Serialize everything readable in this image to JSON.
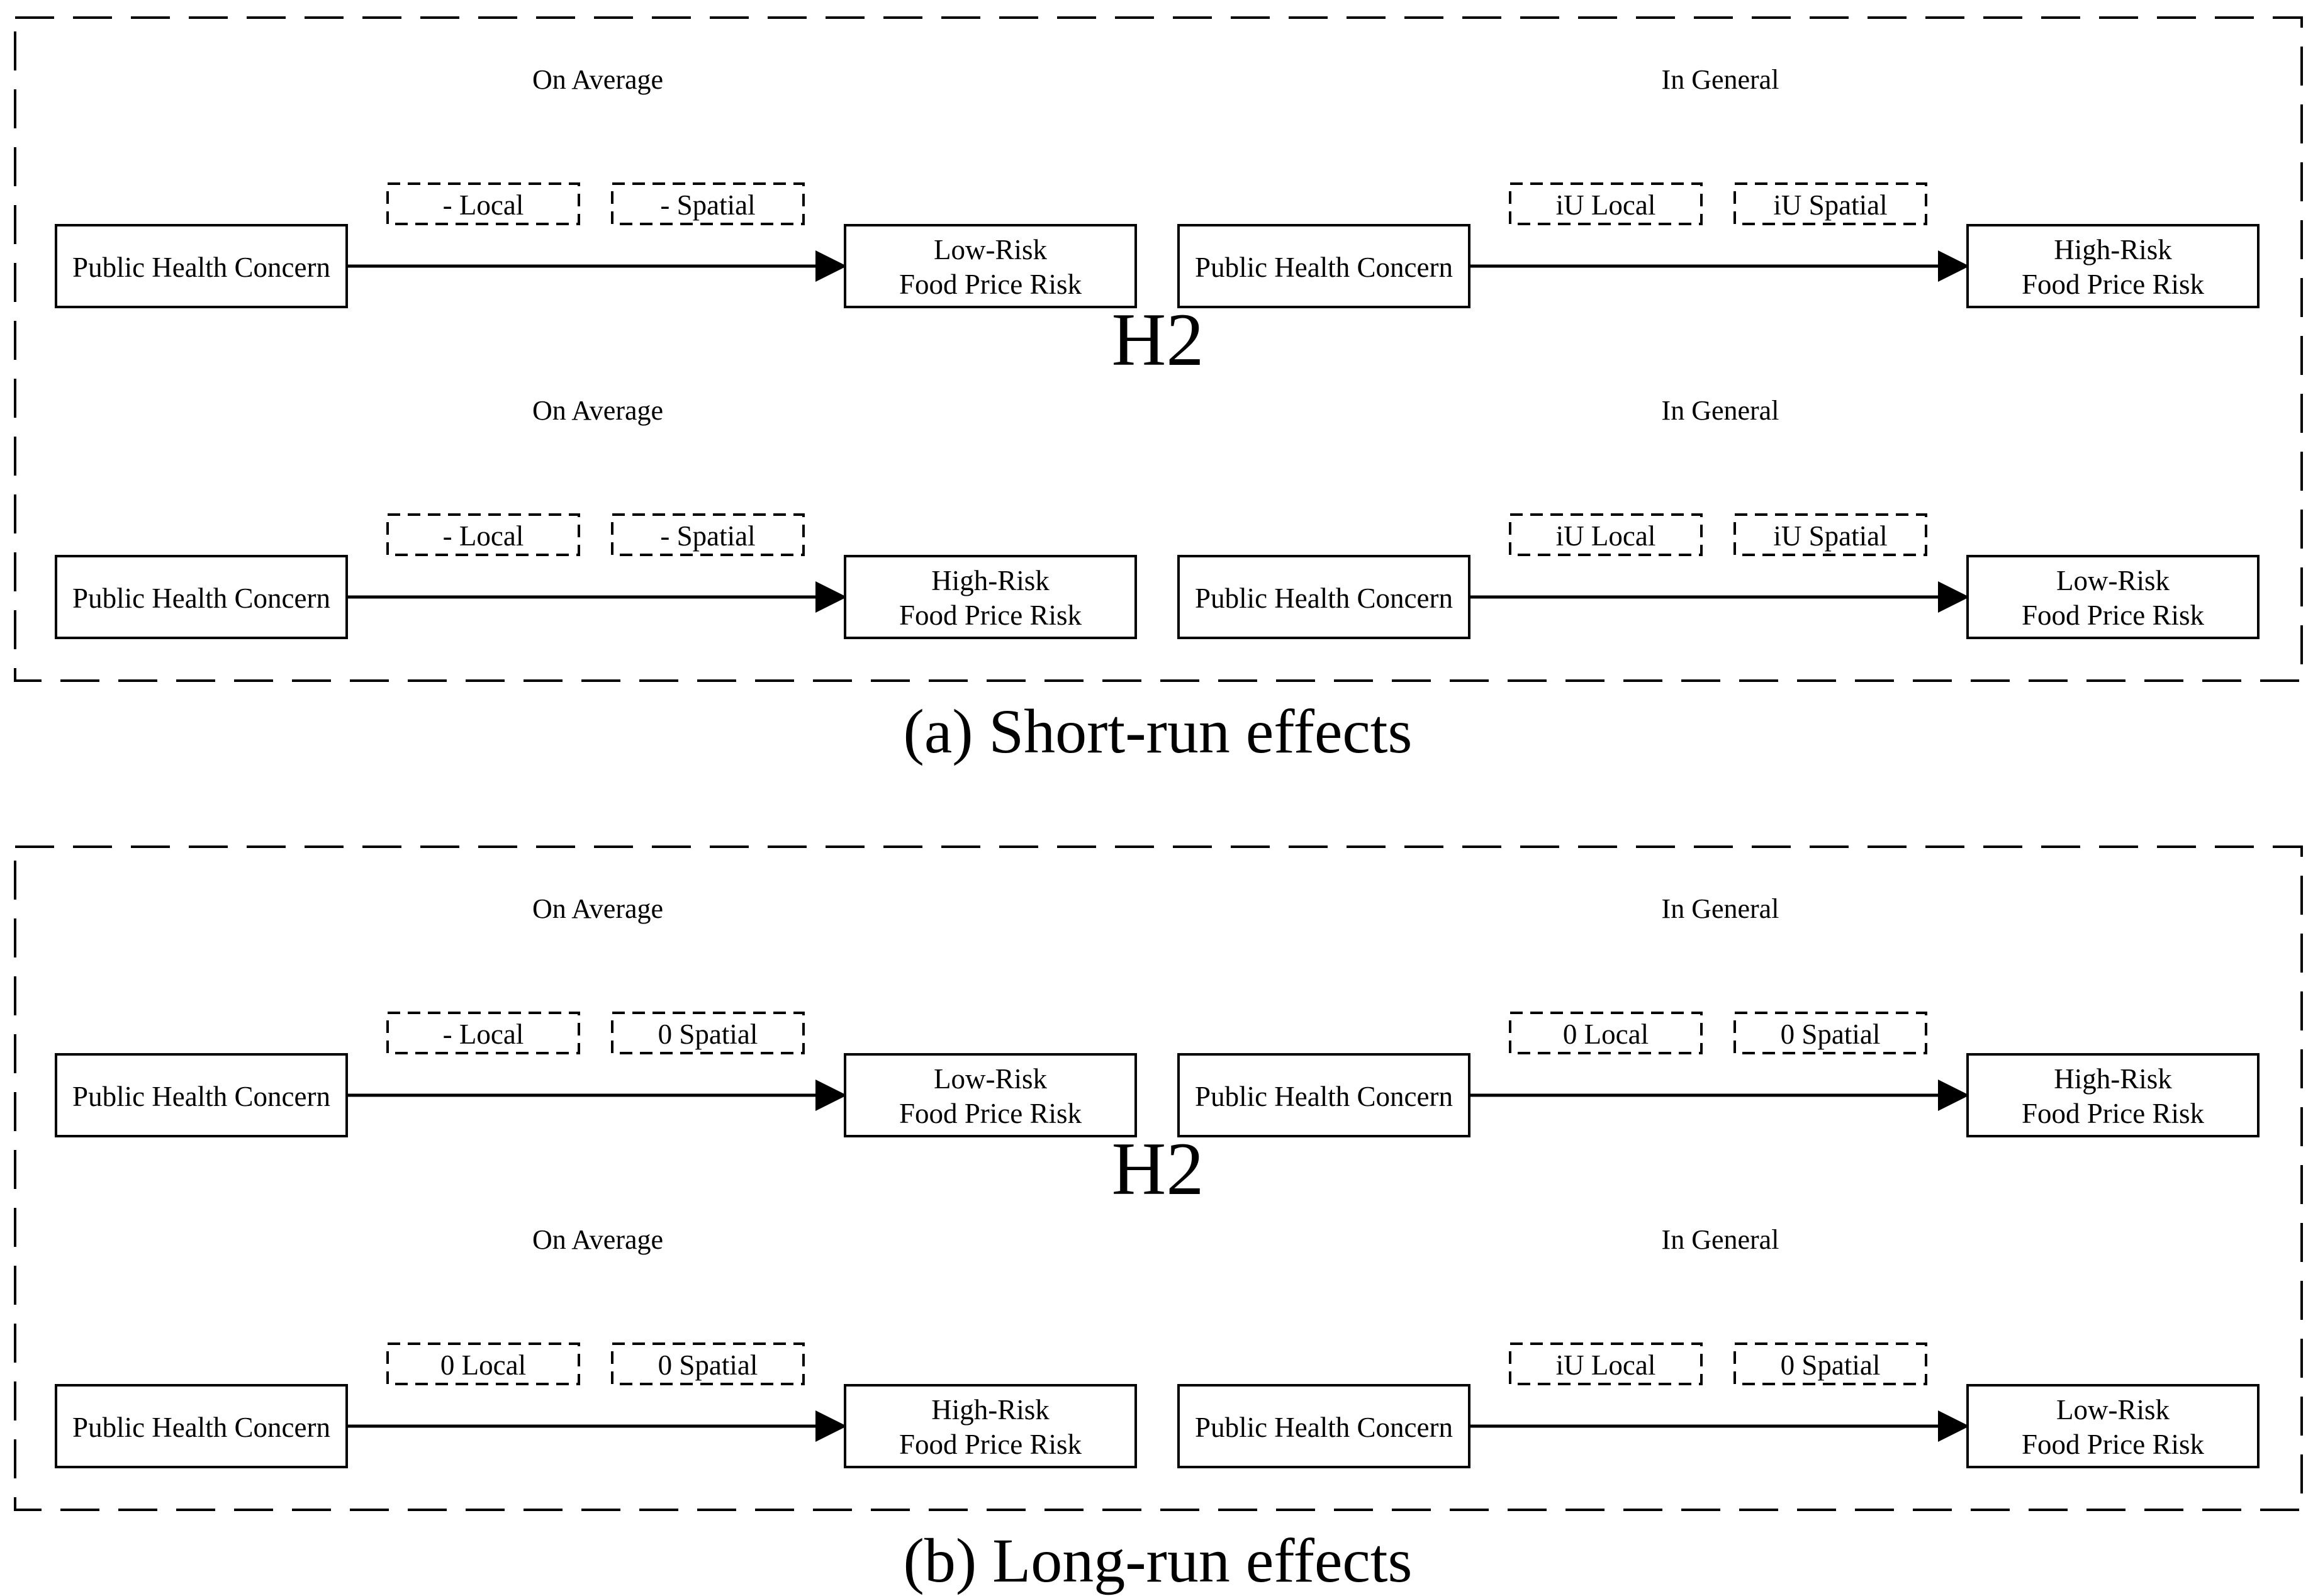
{
  "colors": {
    "low_risk": "#00A540",
    "high_risk": "#FF0000",
    "stroke": "#000000"
  },
  "panels": [
    {
      "caption": "(a) Short-run effects",
      "hypothesis": "H2",
      "rows": [
        {
          "left": {
            "heading": "On Average",
            "source": "Public Health Concern",
            "effects": [
              "- Local",
              "- Spatial"
            ],
            "target": {
              "risk": "Low-Risk",
              "risk_level": "low",
              "label": "Food Price Risk"
            }
          },
          "right": {
            "heading": "In General",
            "source": "Public Health Concern",
            "effects": [
              "iU Local",
              "iU Spatial"
            ],
            "target": {
              "risk": "High-Risk",
              "risk_level": "high",
              "label": "Food Price Risk"
            }
          }
        },
        {
          "left": {
            "heading": "On Average",
            "source": "Public Health Concern",
            "effects": [
              "- Local",
              "- Spatial"
            ],
            "target": {
              "risk": "High-Risk",
              "risk_level": "high",
              "label": "Food Price Risk"
            }
          },
          "right": {
            "heading": "In General",
            "source": "Public Health Concern",
            "effects": [
              "iU Local",
              "iU Spatial"
            ],
            "target": {
              "risk": "Low-Risk",
              "risk_level": "low",
              "label": "Food Price Risk"
            }
          }
        }
      ]
    },
    {
      "caption": "(b) Long-run effects",
      "hypothesis": "H2",
      "rows": [
        {
          "left": {
            "heading": "On Average",
            "source": "Public Health Concern",
            "effects": [
              "- Local",
              "0 Spatial"
            ],
            "target": {
              "risk": "Low-Risk",
              "risk_level": "low",
              "label": "Food Price Risk"
            }
          },
          "right": {
            "heading": "In General",
            "source": "Public Health Concern",
            "effects": [
              "0 Local",
              "0 Spatial"
            ],
            "target": {
              "risk": "High-Risk",
              "risk_level": "high",
              "label": "Food Price Risk"
            }
          }
        },
        {
          "left": {
            "heading": "On Average",
            "source": "Public Health Concern",
            "effects": [
              "0 Local",
              "0 Spatial"
            ],
            "target": {
              "risk": "High-Risk",
              "risk_level": "high",
              "label": "Food Price Risk"
            }
          },
          "right": {
            "heading": "In General",
            "source": "Public Health Concern",
            "effects": [
              "iU Local",
              "0 Spatial"
            ],
            "target": {
              "risk": "Low-Risk",
              "risk_level": "low",
              "label": "Food Price Risk"
            }
          }
        }
      ]
    }
  ]
}
